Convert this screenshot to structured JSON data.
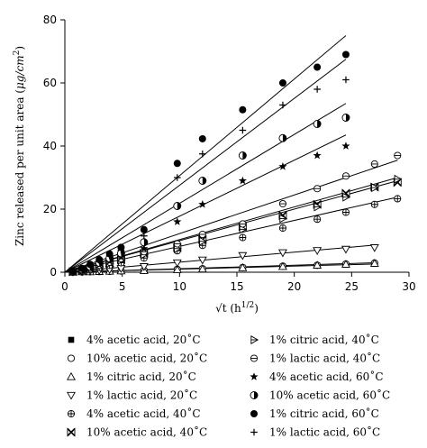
{
  "chart_data": {
    "type": "scatter",
    "xlabel": "√t (h1/2)",
    "xlabel_parts": {
      "main": "√t (h",
      "sup": "1/2",
      "close": ")"
    },
    "ylabel": "Zinc released per unit area (μg/cm2)",
    "ylabel_parts": {
      "main": "Zinc released per unit area (",
      "unit": "μg/cm",
      "sup": "2",
      "close": ")"
    },
    "xlim": [
      0,
      30
    ],
    "ylim": [
      0,
      80
    ],
    "xticks": [
      0,
      5,
      10,
      15,
      20,
      25,
      30
    ],
    "yticks": [
      0,
      20,
      40,
      60,
      80
    ],
    "grid": false,
    "legend_position": "bottom",
    "series": [
      {
        "name": "4% acetic acid, 20˚C",
        "marker": "square-filled",
        "x": [
          0.7,
          1.5,
          2.2,
          3.0,
          3.9,
          4.9,
          6.9,
          9.8,
          12.0,
          15.5,
          19.0,
          22.0,
          24.5,
          27.0
        ],
        "y": [
          0.0,
          0.1,
          0.1,
          0.2,
          0.3,
          0.4,
          0.5,
          0.8,
          1.0,
          1.4,
          1.8,
          2.1,
          2.4,
          2.7
        ],
        "fit": [
          [
            0,
            0
          ],
          [
            27,
            2.6
          ]
        ]
      },
      {
        "name": "10% acetic acid, 20˚C",
        "marker": "circle-open",
        "x": [
          0.7,
          1.5,
          2.2,
          3.0,
          3.9,
          4.9,
          6.9,
          9.8,
          12.0,
          15.5,
          19.0,
          22.0,
          24.5,
          27.0
        ],
        "y": [
          0.0,
          0.1,
          0.2,
          0.2,
          0.3,
          0.4,
          0.6,
          0.9,
          1.1,
          1.5,
          1.9,
          2.2,
          2.6,
          2.9
        ],
        "fit": null
      },
      {
        "name": "1% citric acid, 20˚C",
        "marker": "triangle-up-open",
        "x": [
          0.7,
          1.5,
          2.2,
          3.0,
          3.9,
          4.9,
          6.9,
          9.8,
          12.0,
          15.5,
          19.0,
          22.0,
          24.5,
          27.0
        ],
        "y": [
          0.0,
          0.1,
          0.1,
          0.2,
          0.3,
          0.4,
          0.5,
          0.8,
          1.0,
          1.4,
          1.8,
          2.2,
          2.5,
          2.8
        ],
        "fit": [
          [
            0,
            0
          ],
          [
            27,
            3.0
          ]
        ]
      },
      {
        "name": "1% lactic acid, 20˚C",
        "marker": "triangle-down-open",
        "x": [
          0.7,
          1.5,
          2.2,
          3.0,
          3.9,
          4.9,
          6.9,
          9.8,
          12.0,
          15.5,
          19.0,
          22.0,
          24.5,
          27.0
        ],
        "y": [
          0.1,
          0.2,
          0.4,
          0.6,
          0.9,
          1.2,
          1.8,
          3.0,
          3.9,
          5.3,
          6.2,
          6.9,
          7.3,
          7.8
        ],
        "fit": [
          [
            0,
            0
          ],
          [
            27,
            8.6
          ]
        ]
      },
      {
        "name": "4% acetic acid, 40˚C",
        "marker": "circle-cross",
        "x": [
          0.7,
          1.5,
          2.2,
          3.0,
          3.9,
          4.9,
          6.9,
          9.8,
          12.0,
          15.5,
          19.0,
          22.0,
          24.5,
          27.0,
          29.0
        ],
        "y": [
          0.1,
          0.4,
          0.9,
          1.5,
          2.2,
          3.0,
          4.5,
          6.8,
          8.5,
          11.0,
          14.0,
          16.8,
          19.0,
          21.5,
          23.3
        ],
        "fit": [
          [
            0,
            0
          ],
          [
            29,
            23.8
          ]
        ]
      },
      {
        "name": "10% acetic acid, 40˚C",
        "marker": "bowtie",
        "x": [
          0.7,
          1.5,
          2.2,
          3.0,
          3.9,
          4.9,
          6.9,
          9.8,
          12.0,
          15.5,
          19.0,
          22.0,
          24.5,
          27.0,
          29.0
        ],
        "y": [
          0.2,
          0.6,
          1.2,
          2.0,
          2.9,
          4.0,
          6.0,
          7.8,
          10.3,
          14.4,
          18.0,
          21.5,
          25.0,
          27.0,
          28.5
        ],
        "fit": [
          [
            0,
            0
          ],
          [
            29,
            29.0
          ]
        ]
      },
      {
        "name": "1% citric acid, 40˚C",
        "marker": "triangle-right-open",
        "x": [
          0.7,
          1.5,
          2.2,
          3.0,
          3.9,
          4.9,
          6.9,
          9.8,
          12.0,
          15.5,
          19.0,
          22.0,
          24.5,
          27.0,
          29.0
        ],
        "y": [
          0.2,
          0.6,
          1.1,
          1.9,
          2.8,
          3.8,
          5.6,
          7.5,
          9.8,
          13.6,
          17.0,
          20.7,
          23.8,
          26.8,
          29.5
        ],
        "fit": [
          [
            0,
            0
          ],
          [
            29,
            30.0
          ]
        ]
      },
      {
        "name": "1% lactic acid, 40˚C",
        "marker": "circle-bar",
        "x": [
          0.7,
          1.5,
          2.2,
          3.0,
          3.9,
          4.9,
          6.9,
          9.8,
          12.0,
          15.5,
          19.0,
          22.0,
          24.5,
          27.0,
          29.0
        ],
        "y": [
          0.2,
          0.7,
          1.3,
          2.2,
          3.2,
          4.3,
          6.5,
          9.0,
          12.0,
          15.3,
          21.7,
          26.5,
          30.5,
          34.3,
          37.0
        ],
        "fit": [
          [
            0,
            0
          ],
          [
            29,
            35.5
          ]
        ]
      },
      {
        "name": "4% acetic acid, 60˚C",
        "marker": "star-filled",
        "x": [
          0.7,
          1.5,
          2.2,
          3.0,
          3.9,
          4.9,
          6.9,
          9.8,
          12.0,
          15.5,
          19.0,
          22.0,
          24.5
        ],
        "y": [
          0.2,
          0.7,
          1.4,
          2.4,
          3.5,
          4.8,
          7.5,
          16.0,
          21.5,
          29.0,
          33.5,
          37.0,
          40.0
        ],
        "fit": [
          [
            0,
            0
          ],
          [
            24.5,
            43.5
          ]
        ]
      },
      {
        "name": "10% acetic acid, 60˚C",
        "marker": "circle-half",
        "x": [
          0.7,
          1.5,
          2.2,
          3.0,
          3.9,
          4.9,
          6.9,
          9.8,
          12.0,
          15.5,
          19.0,
          22.0,
          24.5
        ],
        "y": [
          0.3,
          0.9,
          1.8,
          3.0,
          4.4,
          6.0,
          9.5,
          21.0,
          29.0,
          37.0,
          42.5,
          47.0,
          49.0
        ],
        "fit": [
          [
            0,
            0
          ],
          [
            24.5,
            53.5
          ]
        ]
      },
      {
        "name": "1% citric acid, 60˚C",
        "marker": "circle-filled",
        "x": [
          0.7,
          1.5,
          2.2,
          3.0,
          3.9,
          4.9,
          6.9,
          9.8,
          12.0,
          15.5,
          19.0,
          22.0,
          24.5
        ],
        "y": [
          0.4,
          1.2,
          2.5,
          4.0,
          5.8,
          7.9,
          13.5,
          34.5,
          42.3,
          51.5,
          60.0,
          65.0,
          69.0
        ],
        "fit": [
          [
            0,
            0
          ],
          [
            24.5,
            75.0
          ]
        ]
      },
      {
        "name": "1% lactic acid, 60˚C",
        "marker": "plus",
        "x": [
          0.7,
          1.5,
          2.2,
          3.0,
          3.9,
          4.9,
          6.9,
          9.8,
          12.0,
          15.5,
          19.0,
          22.0,
          24.5
        ],
        "y": [
          0.4,
          1.1,
          2.2,
          3.6,
          5.2,
          7.0,
          11.5,
          30.0,
          37.5,
          45.0,
          53.0,
          58.0,
          61.0
        ],
        "fit": [
          [
            0,
            0
          ],
          [
            24.5,
            67.5
          ]
        ]
      }
    ]
  }
}
